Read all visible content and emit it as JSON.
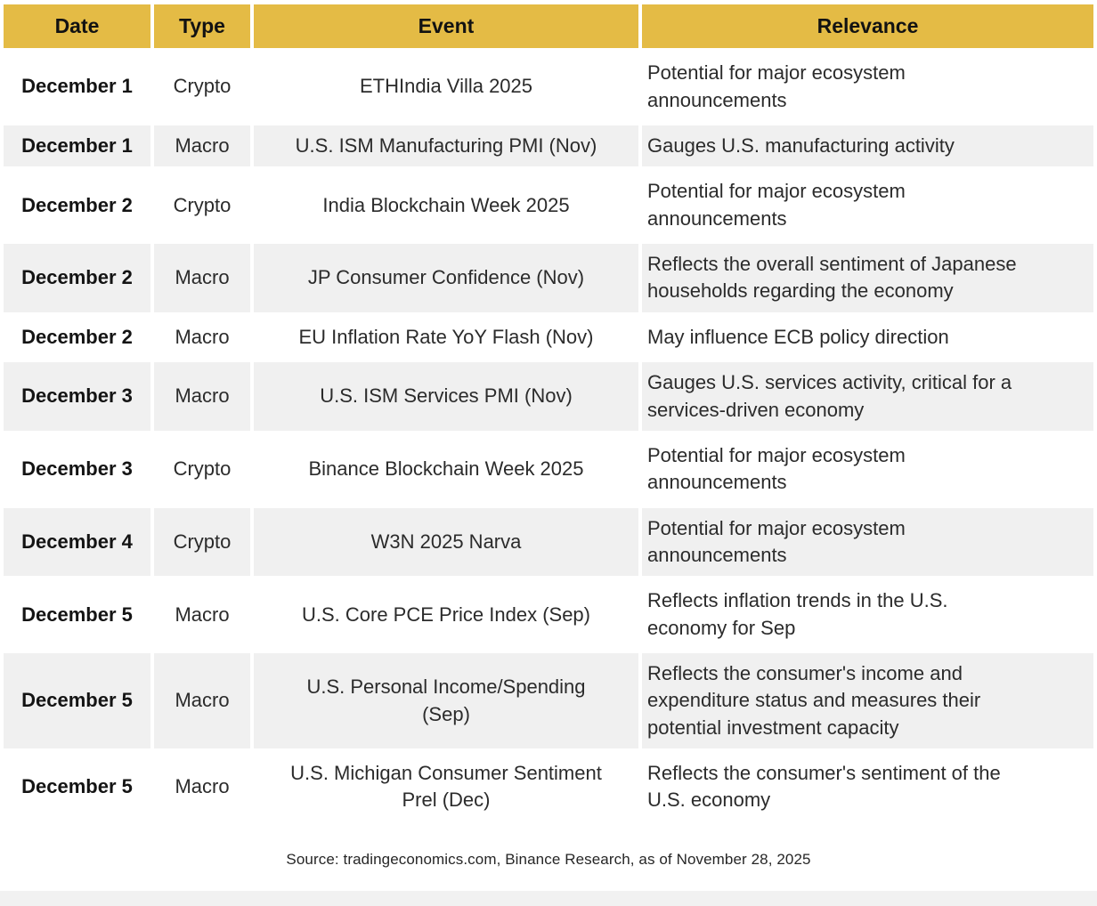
{
  "table": {
    "headers": [
      "Date",
      "Type",
      "Event",
      "Relevance"
    ],
    "rows": [
      {
        "date": "December 1",
        "type": "Crypto",
        "event": "ETHIndia Villa 2025",
        "relevance": "Potential for major ecosystem announcements"
      },
      {
        "date": "December 1",
        "type": "Macro",
        "event": "U.S. ISM Manufacturing PMI (Nov)",
        "relevance": "Gauges U.S. manufacturing activity"
      },
      {
        "date": "December 2",
        "type": "Crypto",
        "event": "India Blockchain Week 2025",
        "relevance": "Potential for major ecosystem announcements"
      },
      {
        "date": "December 2",
        "type": "Macro",
        "event": "JP Consumer Confidence (Nov)",
        "relevance": "Reflects the overall sentiment of Japanese households regarding the economy"
      },
      {
        "date": "December 2",
        "type": "Macro",
        "event": "EU Inflation Rate YoY Flash (Nov)",
        "relevance": "May influence ECB policy direction"
      },
      {
        "date": "December 3",
        "type": "Macro",
        "event": "U.S. ISM Services PMI (Nov)",
        "relevance": "Gauges U.S. services activity, critical for a services-driven economy"
      },
      {
        "date": "December 3",
        "type": "Crypto",
        "event": "Binance Blockchain Week 2025",
        "relevance": "Potential for major ecosystem announcements"
      },
      {
        "date": "December 4",
        "type": "Crypto",
        "event": "W3N 2025 Narva",
        "relevance": "Potential for major ecosystem announcements"
      },
      {
        "date": "December 5",
        "type": "Macro",
        "event": "U.S. Core PCE Price Index (Sep)",
        "relevance": "Reflects inflation trends in the U.S. economy for Sep"
      },
      {
        "date": "December 5",
        "type": "Macro",
        "event": "U.S. Personal Income/Spending (Sep)",
        "relevance": "Reflects the consumer's income and expenditure status and measures their potential investment capacity"
      },
      {
        "date": "December 5",
        "type": "Macro",
        "event": "U.S. Michigan Consumer Sentiment Prel (Dec)",
        "relevance": "Reflects the consumer's sentiment of the U.S. economy"
      }
    ]
  },
  "footer": {
    "source": "Source: tradingeconomics.com, Binance Research, as of November 28, 2025"
  },
  "colors": {
    "header_bg": "#E4BB45",
    "row_alt_bg": "#F0F0F0",
    "text": "#2B2B2B"
  },
  "chart_data": {
    "type": "table",
    "title": "",
    "columns": [
      "Date",
      "Type",
      "Event",
      "Relevance"
    ],
    "rows": [
      [
        "December 1",
        "Crypto",
        "ETHIndia Villa 2025",
        "Potential for major ecosystem announcements"
      ],
      [
        "December 1",
        "Macro",
        "U.S. ISM Manufacturing PMI (Nov)",
        "Gauges U.S. manufacturing activity"
      ],
      [
        "December 2",
        "Crypto",
        "India Blockchain Week 2025",
        "Potential for major ecosystem announcements"
      ],
      [
        "December 2",
        "Macro",
        "JP Consumer Confidence (Nov)",
        "Reflects the overall sentiment of Japanese households regarding the economy"
      ],
      [
        "December 2",
        "Macro",
        "EU Inflation Rate YoY Flash (Nov)",
        "May influence ECB policy direction"
      ],
      [
        "December 3",
        "Macro",
        "U.S. ISM Services PMI (Nov)",
        "Gauges U.S. services activity, critical for a services-driven economy"
      ],
      [
        "December 3",
        "Crypto",
        "Binance Blockchain Week 2025",
        "Potential for major ecosystem announcements"
      ],
      [
        "December 4",
        "Crypto",
        "W3N 2025 Narva",
        "Potential for major ecosystem announcements"
      ],
      [
        "December 5",
        "Macro",
        "U.S. Core PCE Price Index (Sep)",
        "Reflects inflation trends in the U.S. economy for Sep"
      ],
      [
        "December 5",
        "Macro",
        "U.S. Personal Income/Spending (Sep)",
        "Reflects the consumer's income and expenditure status and measures their potential investment capacity"
      ],
      [
        "December 5",
        "Macro",
        "U.S. Michigan Consumer Sentiment Prel (Dec)",
        "Reflects the consumer's sentiment of the U.S. economy"
      ]
    ],
    "notes": "Source: tradingeconomics.com, Binance Research, as of November 28, 2025",
    "layout_hints": {
      "header_bg": "#E4BB45",
      "alternating_rows": true,
      "alt_row_bg": "#F0F0F0"
    }
  }
}
